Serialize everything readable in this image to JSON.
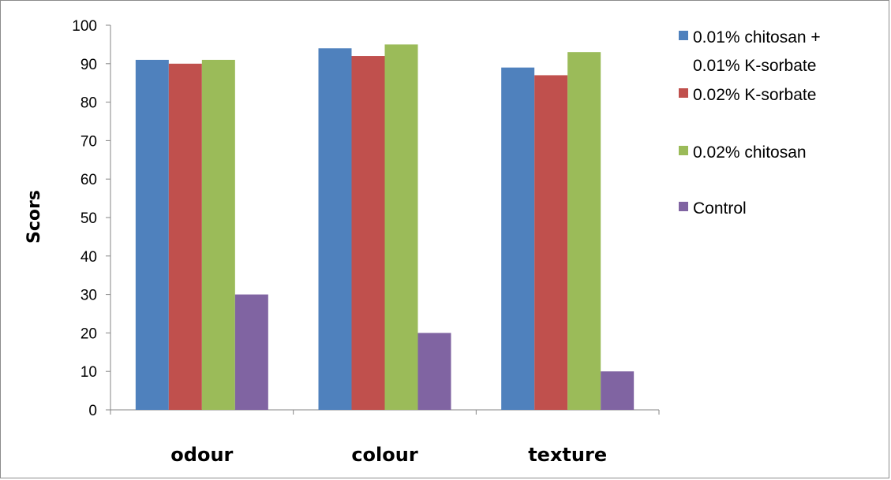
{
  "chart_data": {
    "type": "bar",
    "title": "",
    "xlabel": "",
    "ylabel": "Scors",
    "ylim": [
      0,
      100
    ],
    "yticks": [
      0,
      10,
      20,
      30,
      40,
      50,
      60,
      70,
      80,
      90,
      100
    ],
    "categories": [
      "odour",
      "colour",
      "texture"
    ],
    "series": [
      {
        "name": "0.01% chitosan + 0.01% K-sorbate",
        "legend_lines": [
          "0.01% chitosan +",
          "0.01% K-sorbate"
        ],
        "color": "#4f81bd",
        "values": [
          91,
          94,
          89
        ]
      },
      {
        "name": "0.02% K-sorbate",
        "legend_lines": [
          "0.02% K-sorbate"
        ],
        "color": "#c0504d",
        "values": [
          90,
          92,
          87
        ]
      },
      {
        "name": "0.02% chitosan",
        "legend_lines": [
          "0.02% chitosan"
        ],
        "color": "#9bbb59",
        "values": [
          91,
          95,
          93
        ]
      },
      {
        "name": "Control",
        "legend_lines": [
          "Control"
        ],
        "color": "#8064a2",
        "values": [
          30,
          20,
          10
        ]
      }
    ],
    "grid": false,
    "legend_position": "right"
  }
}
